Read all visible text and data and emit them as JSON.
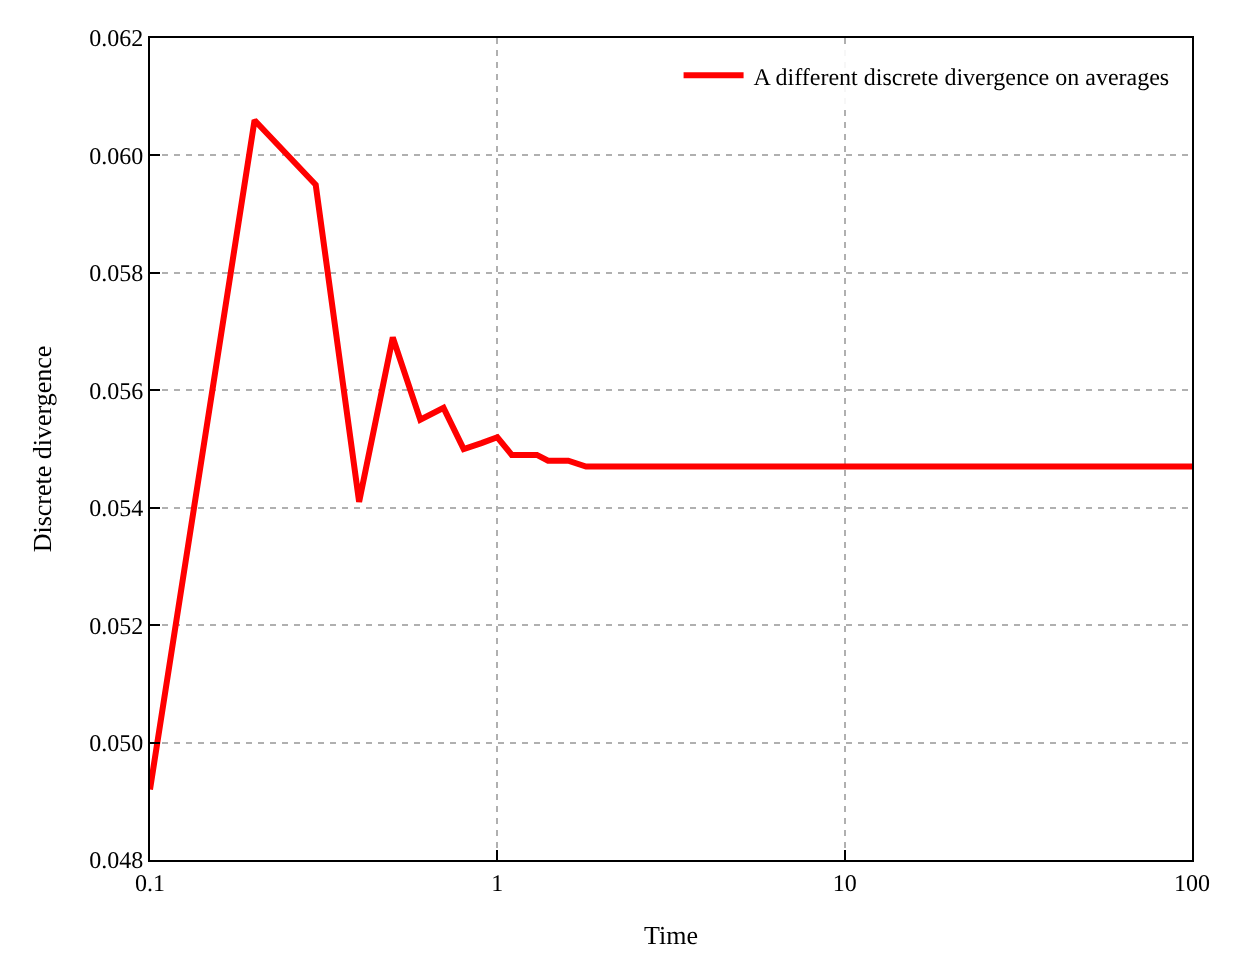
{
  "chart_data": {
    "type": "line",
    "xlabel": "Time",
    "ylabel": "Discrete divergence",
    "log": "x",
    "grid": true,
    "legend": "top right",
    "line_style": "solid",
    "marker": "none",
    "x": [
      0.1,
      0.2,
      0.3,
      0.4,
      0.5,
      0.6,
      0.7,
      0.8,
      0.9,
      1.0,
      1.1,
      1.3,
      1.4,
      1.6,
      1.8,
      2.0,
      2.3,
      3.0,
      10,
      100
    ],
    "series": [
      {
        "name": "A different discrete divergence on averages",
        "color": "#ff0000",
        "values": [
          0.0492,
          0.0606,
          0.0595,
          0.0541,
          0.0569,
          0.0555,
          0.0557,
          0.055,
          0.0551,
          0.0552,
          0.0549,
          0.0549,
          0.0548,
          0.0548,
          0.0547,
          0.0547,
          0.0547,
          0.0547,
          0.0547,
          0.0547
        ]
      }
    ],
    "xlim": [
      0.1,
      100
    ],
    "xticks": [
      0.1,
      1,
      10,
      100
    ],
    "ylim": [
      0.048,
      0.062
    ],
    "yticks": [
      0.048,
      {
        "value": 0.05,
        "label": "0.050"
      },
      0.052,
      0.054,
      0.056,
      0.058,
      {
        "value": 0.06,
        "label": "0.060"
      },
      0.062
    ]
  }
}
